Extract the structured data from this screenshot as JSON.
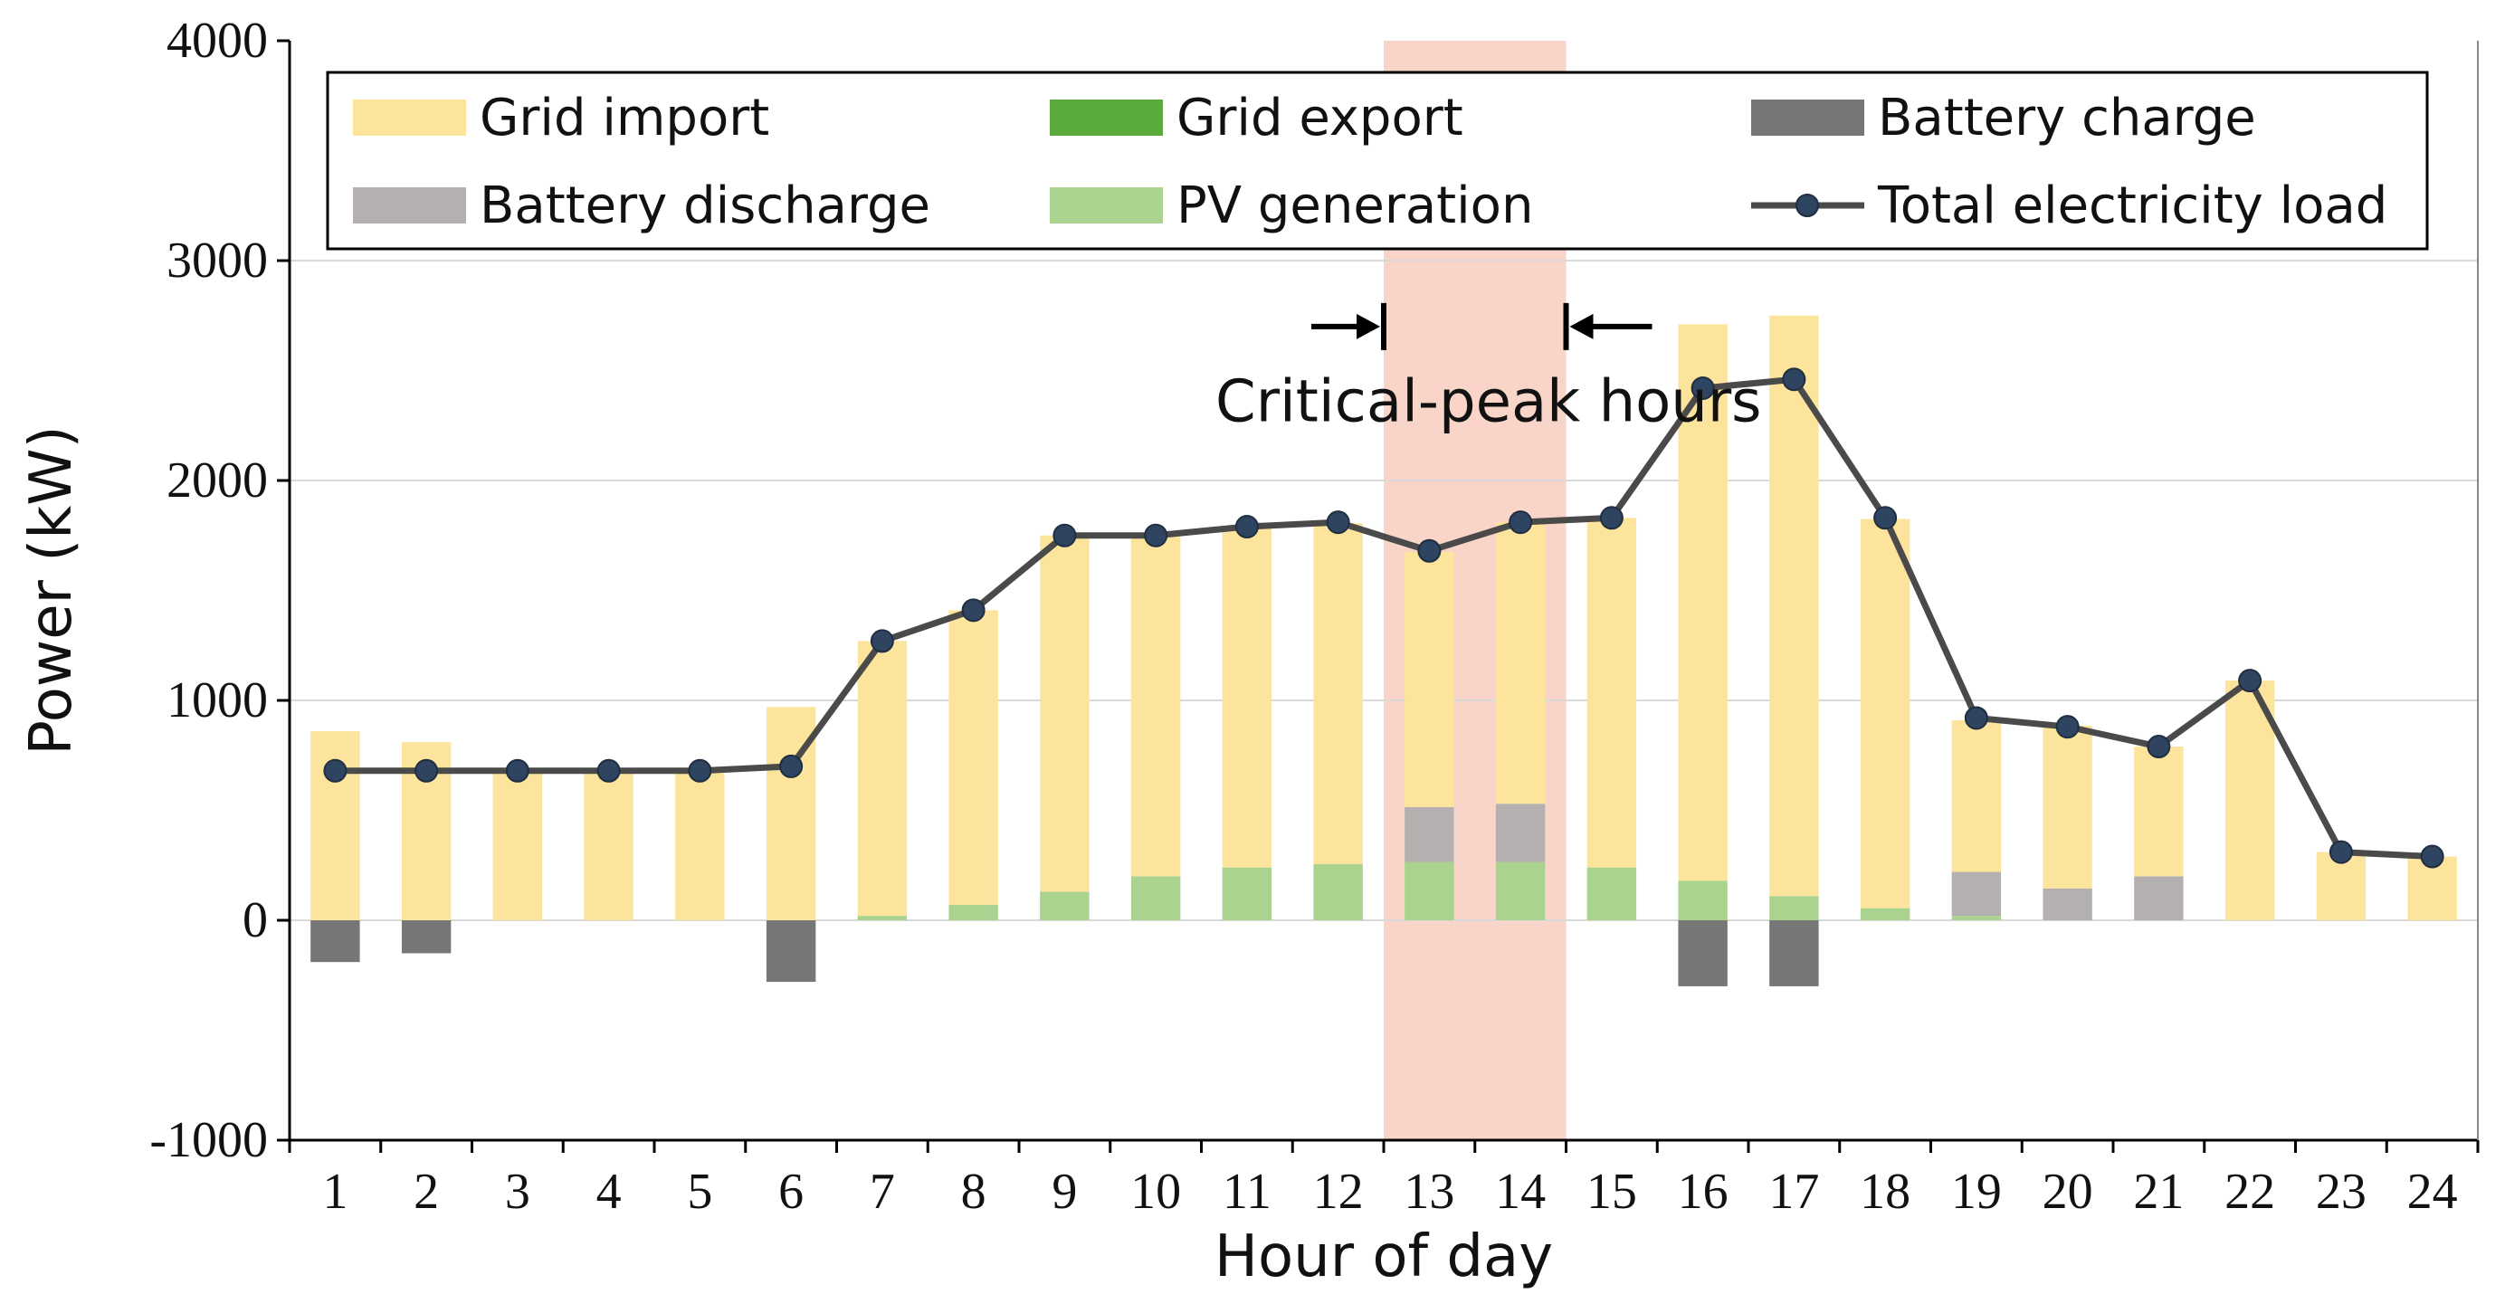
{
  "chart_data": {
    "type": "bar",
    "xlabel": "Hour of day",
    "ylabel": "Power (kW)",
    "ylim": [
      -1000,
      4000
    ],
    "yticks": [
      -1000,
      0,
      1000,
      2000,
      3000,
      4000
    ],
    "categories": [
      "1",
      "2",
      "3",
      "4",
      "5",
      "6",
      "7",
      "8",
      "9",
      "10",
      "11",
      "12",
      "13",
      "14",
      "15",
      "16",
      "17",
      "18",
      "19",
      "20",
      "21",
      "22",
      "23",
      "24"
    ],
    "grid": "horizontal",
    "legend_position": "top",
    "highlight": {
      "label": "Critical-peak hours",
      "from_hour": 12.5,
      "to_hour": 14.5,
      "color": "#f8d5c8"
    },
    "colors": {
      "grid_import": "#fde49c",
      "grid_export": "#5aab3c",
      "battery_charge": "#767676",
      "battery_discharge": "#b5b0b0",
      "pv_generation": "#a9d38e",
      "load_line": "#4a4a4a",
      "load_marker": "#2f4460"
    },
    "series": [
      {
        "key": "pv_generation",
        "name": "PV generation",
        "kind": "bar",
        "values": [
          0,
          0,
          0,
          0,
          0,
          0,
          20,
          70,
          130,
          200,
          240,
          255,
          265,
          265,
          240,
          180,
          110,
          55,
          20,
          0,
          0,
          0,
          0,
          0
        ]
      },
      {
        "key": "battery_discharge",
        "name": "Battery discharge",
        "kind": "bar",
        "values": [
          0,
          0,
          0,
          0,
          0,
          0,
          0,
          0,
          0,
          0,
          0,
          0,
          250,
          265,
          0,
          0,
          0,
          0,
          200,
          145,
          200,
          0,
          0,
          0
        ]
      },
      {
        "key": "grid_import",
        "name": "Grid import",
        "kind": "bar",
        "values": [
          860,
          810,
          680,
          680,
          680,
          970,
          1250,
          1340,
          1620,
          1550,
          1550,
          1550,
          1160,
          1280,
          1590,
          2530,
          2640,
          1770,
          690,
          740,
          590,
          1090,
          310,
          290
        ]
      },
      {
        "key": "battery_charge",
        "name": "Battery charge",
        "kind": "bar",
        "values": [
          -190,
          -150,
          0,
          0,
          0,
          -280,
          0,
          0,
          0,
          0,
          0,
          0,
          0,
          0,
          0,
          -300,
          -300,
          0,
          0,
          0,
          0,
          0,
          0,
          0
        ]
      },
      {
        "key": "grid_export",
        "name": "Grid export",
        "kind": "bar",
        "values": [
          0,
          0,
          0,
          0,
          0,
          0,
          0,
          0,
          0,
          0,
          0,
          0,
          0,
          0,
          0,
          0,
          0,
          0,
          0,
          0,
          0,
          0,
          0,
          0
        ]
      },
      {
        "key": "total_load",
        "name": "Total electricity load",
        "kind": "line",
        "values": [
          680,
          680,
          680,
          680,
          680,
          700,
          1270,
          1410,
          1750,
          1750,
          1790,
          1810,
          1680,
          1810,
          1830,
          2420,
          2460,
          1830,
          920,
          880,
          790,
          1090,
          310,
          290
        ]
      }
    ],
    "legend": [
      {
        "key": "grid_import",
        "label": "Grid import"
      },
      {
        "key": "grid_export",
        "label": "Grid export"
      },
      {
        "key": "battery_charge",
        "label": "Battery charge"
      },
      {
        "key": "battery_discharge",
        "label": "Battery discharge"
      },
      {
        "key": "pv_generation",
        "label": "PV generation"
      },
      {
        "key": "total_load",
        "label": "Total electricity load"
      }
    ]
  }
}
